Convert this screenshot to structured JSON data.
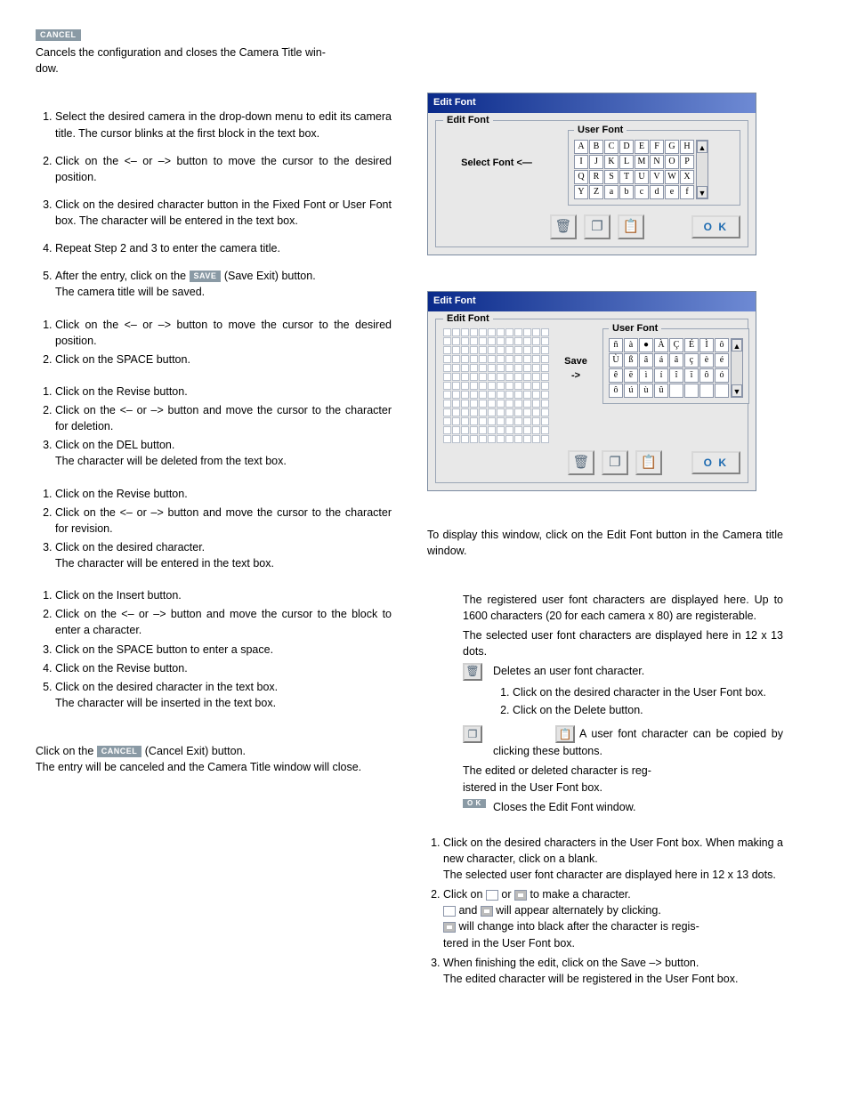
{
  "cancel_btn": "CANCEL",
  "save_btn": "SAVE",
  "ok_btn": "O K",
  "left": {
    "cancel_para1": "Cancels the configuration and closes the Camera Title win-",
    "cancel_para2": "dow.",
    "enter_steps": {
      "s1": "Select the desired camera in the drop-down menu to edit its camera title. The cursor blinks at the first block in the text box.",
      "s2": "Click on the <– or –> button to move the cursor to the desired position.",
      "s3": "Click on the desired character button in the Fixed Font or User Font box. The character will be entered in the text box.",
      "s4": "Repeat Step 2 and 3 to enter the camera title.",
      "s5a": "After the entry, click on the ",
      "s5b": " (Save Exit) button.",
      "s5c": "The camera title will be saved."
    },
    "space_steps": {
      "s1": "Click on the <– or –> button to move the cursor to the desired position.",
      "s2": "Click on the SPACE button."
    },
    "del_steps": {
      "s1": "Click on the Revise button.",
      "s2": "Click on the <– or –> button and move the cursor to the character for deletion.",
      "s3a": "Click on the DEL button.",
      "s3b": "The character will be deleted from the text box."
    },
    "rev_steps": {
      "s1": "Click on the Revise button.",
      "s2": "Click on the <– or –> button and move the cursor to the character for revision.",
      "s3a": "Click on the desired character.",
      "s3b": "The character will be entered in the text box."
    },
    "ins_steps": {
      "s1": "Click on the Insert button.",
      "s2": "Click on the <– or –> button and move the cursor to the block to enter a character.",
      "s3": "Click on the SPACE button to enter a space.",
      "s4": "Click on the Revise button.",
      "s5a": "Click on the desired character in the text box.",
      "s5b": "The character will be inserted in the text box."
    },
    "cancel_exit_a": "Click on the ",
    "cancel_exit_b": " (Cancel Exit) button.",
    "cancel_exit_c": "The entry will be canceled and the Camera Title window will close."
  },
  "right": {
    "win_title": "Edit Font",
    "fieldset_legend": "Edit Font",
    "select_font": "Select Font <—",
    "userfont_legend": "User Font",
    "userfont_rows1": [
      [
        "A",
        "B",
        "C",
        "D",
        "E",
        "F",
        "G",
        "H"
      ],
      [
        "I",
        "J",
        "K",
        "L",
        "M",
        "N",
        "O",
        "P"
      ],
      [
        "Q",
        "R",
        "S",
        "T",
        "U",
        "V",
        "W",
        "X"
      ],
      [
        "Y",
        "Z",
        "a",
        "b",
        "c",
        "d",
        "e",
        "f"
      ]
    ],
    "save_arrow": "Save\n->",
    "userfont_rows2": [
      [
        "ñ",
        "à",
        "●",
        "À",
        "Ç",
        "É",
        "Ì",
        "ô"
      ],
      [
        "Ù",
        "ß",
        "â",
        "á",
        "â",
        "ç",
        "è",
        "é"
      ],
      [
        "ê",
        "ë",
        "ì",
        "í",
        "î",
        "ï",
        "ô",
        "ó"
      ],
      [
        "ô",
        "ú",
        "ù",
        "û",
        "",
        "",
        "",
        ""
      ]
    ],
    "display_para": "To display this window, click on the Edit Font button in the Camera title window.",
    "desc": {
      "userfont": "The registered user font characters are displayed here. Up to 1600 characters (20 for each camera x 80) are registerable.",
      "editfont": "The selected user font characters are displayed here in 12 x 13 dots.",
      "delete_a": "Deletes an user font character.",
      "del1": "Click on the desired character in the User Font box.",
      "del2": "Click on the Delete button.",
      "copy_a": "A user font character can be copied by clicking these buttons.",
      "register": "The edited or deleted character is reg-",
      "register2": "istered in the User Font box.",
      "close": "Closes the Edit Font window."
    },
    "create": {
      "s1a": "Click on the desired characters in the User Font box. When making a new character, click on a blank.",
      "s1b": "The selected user font character are displayed here in 12 x 13 dots.",
      "s2a": "Click on ",
      "s2b": " or ",
      "s2c": " to make a character.",
      "s2d_a": " and ",
      "s2d_b": " will appear alternately by clicking.",
      "s2e": " will change into black after the character is regis-",
      "s2e2": "tered in the User Font box.",
      "s3a": "When finishing the edit, click on the Save –> button.",
      "s3b": "The edited character will be registered in the User Font box."
    }
  }
}
